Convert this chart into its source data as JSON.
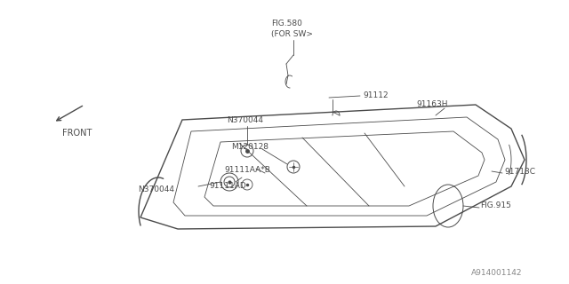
{
  "bg_color": "#ffffff",
  "line_color": "#4a4a4a",
  "text_color": "#4a4a4a",
  "diagram_id": "A914001142",
  "font_size": 6.5,
  "fig580_label1": "FIG.580",
  "fig580_label2": "(FOR SW>",
  "label_91112": "91112",
  "label_91163H": "91163H",
  "label_N370044_top": "N370044",
  "label_M120128": "M120128",
  "label_91111AAB": "91111AA*B",
  "label_91111AD": "91111AD",
  "label_N370044_bot": "N370044",
  "label_91713C": "91713C",
  "label_FIG915": "FIG.915",
  "label_FRONT": "FRONT"
}
